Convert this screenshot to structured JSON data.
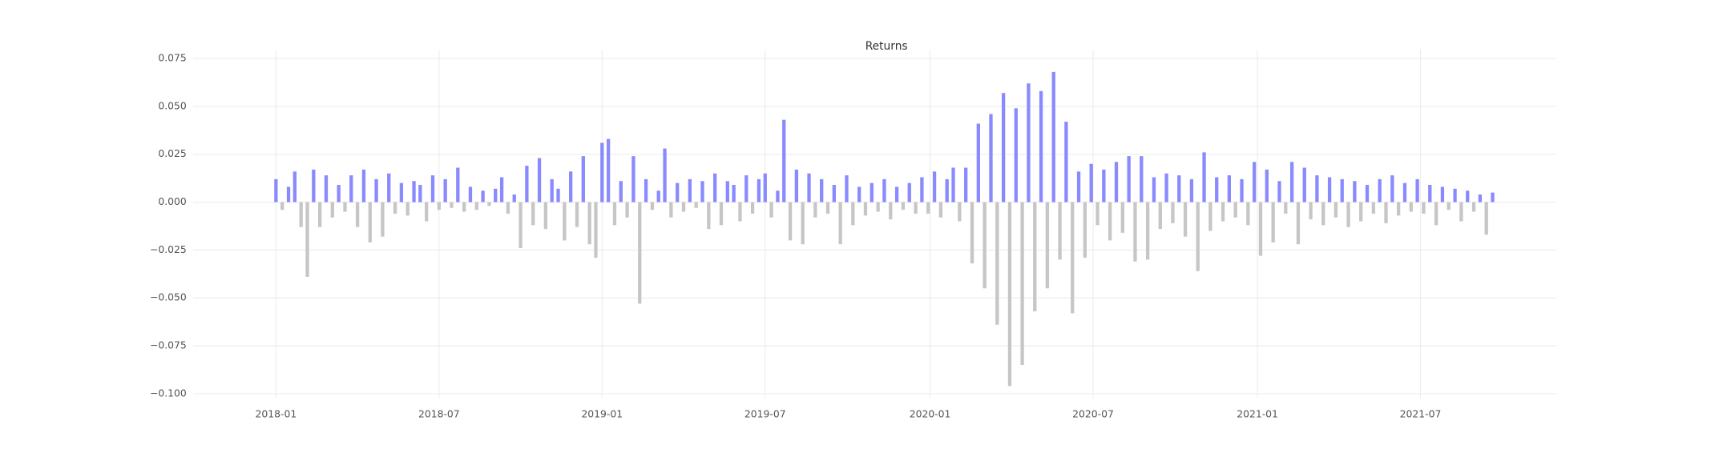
{
  "chart_data": {
    "type": "bar",
    "title": "Returns",
    "positive_color": "#8a8aff",
    "negative_color": "#c6c6c6",
    "grid": true,
    "ylim": [
      -0.1,
      0.075
    ],
    "yticks": [
      {
        "value": -0.1,
        "label": "−0.100"
      },
      {
        "value": -0.075,
        "label": "−0.075"
      },
      {
        "value": -0.05,
        "label": "−0.050"
      },
      {
        "value": -0.025,
        "label": "−0.025"
      },
      {
        "value": 0,
        "label": "0.000"
      },
      0.025,
      {
        "value": 0.05,
        "label": "0.050"
      },
      0.075
    ],
    "xlim": [
      -13.2,
      204.2
    ],
    "xticks": [
      {
        "value": 0,
        "label": "2018-01"
      },
      {
        "value": 26,
        "label": "2018-07"
      },
      {
        "value": 52,
        "label": "2019-01"
      },
      {
        "value": 78,
        "label": "2019-07"
      },
      {
        "value": 104.3,
        "label": "2020-01"
      },
      {
        "value": 130.3,
        "label": "2020-07"
      },
      {
        "value": 156.5,
        "label": "2021-01"
      },
      {
        "value": 182.5,
        "label": "2021-07"
      }
    ],
    "values": [
      0.012,
      -0.004,
      0.008,
      0.016,
      -0.013,
      -0.039,
      0.017,
      -0.013,
      0.014,
      -0.008,
      0.009,
      -0.005,
      0.014,
      -0.013,
      0.017,
      -0.021,
      0.012,
      -0.018,
      0.015,
      -0.006,
      0.01,
      -0.007,
      0.011,
      0.009,
      -0.01,
      0.014,
      -0.004,
      0.012,
      -0.003,
      0.018,
      -0.005,
      0.008,
      -0.004,
      0.006,
      -0.002,
      0.007,
      0.013,
      -0.006,
      0.004,
      -0.024,
      0.019,
      -0.012,
      0.023,
      -0.014,
      0.012,
      0.007,
      -0.02,
      0.016,
      -0.013,
      0.024,
      -0.022,
      -0.029,
      0.031,
      0.033,
      -0.012,
      0.011,
      -0.008,
      0.024,
      -0.053,
      0.012,
      -0.004,
      0.006,
      0.028,
      -0.008,
      0.01,
      -0.005,
      0.012,
      -0.003,
      0.011,
      -0.014,
      0.015,
      -0.012,
      0.011,
      0.009,
      -0.01,
      0.014,
      -0.006,
      0.012,
      0.015,
      -0.008,
      0.006,
      0.043,
      -0.02,
      0.017,
      -0.022,
      0.015,
      -0.008,
      0.012,
      -0.006,
      0.009,
      -0.022,
      0.014,
      -0.012,
      0.008,
      -0.007,
      0.01,
      -0.005,
      0.012,
      -0.009,
      0.008,
      -0.004,
      0.01,
      -0.006,
      0.013,
      -0.006,
      0.016,
      -0.008,
      0.012,
      0.018,
      -0.01,
      0.018,
      -0.032,
      0.041,
      -0.045,
      0.046,
      -0.064,
      0.057,
      -0.096,
      0.049,
      -0.085,
      0.062,
      -0.057,
      0.058,
      -0.045,
      0.068,
      -0.03,
      0.042,
      -0.058,
      0.016,
      -0.029,
      0.02,
      -0.012,
      0.017,
      -0.02,
      0.021,
      -0.016,
      0.024,
      -0.031,
      0.024,
      -0.03,
      0.013,
      -0.014,
      0.015,
      -0.011,
      0.014,
      -0.018,
      0.012,
      -0.036,
      0.026,
      -0.015,
      0.013,
      -0.01,
      0.014,
      -0.008,
      0.012,
      -0.012,
      0.021,
      -0.028,
      0.017,
      -0.021,
      0.011,
      -0.006,
      0.021,
      -0.022,
      0.018,
      -0.009,
      0.014,
      -0.012,
      0.013,
      -0.008,
      0.012,
      -0.013,
      0.011,
      -0.01,
      0.009,
      -0.006,
      0.012,
      -0.011,
      0.014,
      -0.007,
      0.01,
      -0.005,
      0.012,
      -0.006,
      0.009,
      -0.012,
      0.008,
      -0.004,
      0.007,
      -0.01,
      0.006,
      -0.005,
      0.004,
      -0.017,
      0.005
    ]
  }
}
